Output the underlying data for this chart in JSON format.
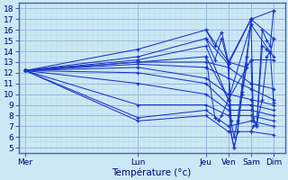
{
  "background_color": "#cce8f4",
  "grid_major_color": "#99bbdd",
  "grid_minor_color": "#b8d8ec",
  "line_color": "#1a35c8",
  "xlabel": "Température (°c)",
  "x_tick_labels": [
    "Mer",
    "Lun",
    "Jeu",
    "Ven",
    "Sam",
    "Dim"
  ],
  "x_tick_positions": [
    0,
    5,
    8,
    9,
    10,
    11
  ],
  "xlim": [
    -0.3,
    11.5
  ],
  "ylim_min": 4.5,
  "ylim_max": 18.5,
  "yticks": [
    5,
    6,
    7,
    8,
    9,
    10,
    11,
    12,
    13,
    14,
    15,
    16,
    17,
    18
  ],
  "series": [
    [
      12.2,
      14.2,
      16.0,
      13.0,
      17.0,
      17.8
    ],
    [
      12.2,
      13.5,
      15.2,
      12.8,
      17.0,
      15.2
    ],
    [
      12.2,
      13.2,
      14.5,
      9.5,
      16.5,
      13.5
    ],
    [
      12.2,
      13.0,
      13.5,
      9.5,
      13.2,
      13.2
    ],
    [
      12.2,
      13.0,
      13.0,
      12.5,
      11.0,
      10.5
    ],
    [
      12.2,
      12.8,
      12.5,
      11.5,
      10.5,
      9.5
    ],
    [
      12.2,
      12.5,
      11.5,
      10.0,
      9.5,
      9.0
    ],
    [
      12.2,
      12.0,
      11.0,
      9.0,
      9.0,
      8.5
    ],
    [
      12.2,
      11.0,
      10.0,
      8.5,
      8.5,
      8.0
    ],
    [
      12.2,
      9.0,
      9.0,
      8.0,
      8.0,
      7.5
    ],
    [
      12.2,
      7.8,
      8.5,
      7.0,
      7.5,
      7.0
    ],
    [
      12.2,
      7.5,
      8.0,
      6.5,
      6.5,
      6.2
    ]
  ],
  "intra_lines": [
    {
      "pts": [
        [
          8.0,
          16.0
        ],
        [
          8.4,
          14.5
        ],
        [
          8.7,
          15.8
        ],
        [
          9.0,
          13.0
        ]
      ]
    },
    {
      "pts": [
        [
          8.0,
          15.2
        ],
        [
          8.4,
          13.2
        ],
        [
          8.7,
          15.2
        ],
        [
          9.0,
          12.8
        ]
      ]
    },
    {
      "pts": [
        [
          8.0,
          13.5
        ],
        [
          8.4,
          7.8
        ],
        [
          8.55,
          7.5
        ],
        [
          8.7,
          8.0
        ],
        [
          9.0,
          9.5
        ]
      ]
    },
    {
      "pts": [
        [
          9.0,
          13.0
        ],
        [
          9.1,
          6.5
        ],
        [
          9.25,
          5.0
        ],
        [
          9.4,
          6.5
        ],
        [
          9.6,
          10.0
        ],
        [
          9.8,
          12.5
        ],
        [
          9.0,
          13.0
        ],
        [
          9.0,
          13.0
        ]
      ]
    },
    {
      "pts": [
        [
          9.0,
          13.0
        ],
        [
          9.1,
          6.5
        ],
        [
          9.25,
          5.0
        ],
        [
          9.4,
          6.5
        ],
        [
          9.6,
          10.2
        ],
        [
          9.8,
          12.8
        ],
        [
          10.0,
          17.0
        ]
      ]
    },
    {
      "pts": [
        [
          9.0,
          12.8
        ],
        [
          9.12,
          7.5
        ],
        [
          9.25,
          6.0
        ],
        [
          9.4,
          7.5
        ],
        [
          9.6,
          10.8
        ],
        [
          9.8,
          13.5
        ],
        [
          10.0,
          16.5
        ]
      ]
    },
    {
      "pts": [
        [
          10.0,
          17.0
        ],
        [
          10.1,
          7.8
        ],
        [
          10.25,
          7.0
        ],
        [
          10.5,
          16.0
        ],
        [
          10.7,
          15.0
        ],
        [
          10.85,
          14.5
        ],
        [
          11.0,
          17.8
        ]
      ]
    },
    {
      "pts": [
        [
          10.0,
          6.5
        ],
        [
          10.1,
          7.0
        ],
        [
          10.25,
          7.2
        ],
        [
          10.5,
          9.5
        ],
        [
          10.7,
          13.5
        ],
        [
          10.85,
          14.0
        ],
        [
          11.0,
          9.2
        ]
      ]
    },
    {
      "pts": [
        [
          10.0,
          13.2
        ],
        [
          10.1,
          7.5
        ],
        [
          10.25,
          7.0
        ],
        [
          10.5,
          14.5
        ],
        [
          10.7,
          14.2
        ],
        [
          10.85,
          13.8
        ],
        [
          11.0,
          15.2
        ]
      ]
    }
  ]
}
